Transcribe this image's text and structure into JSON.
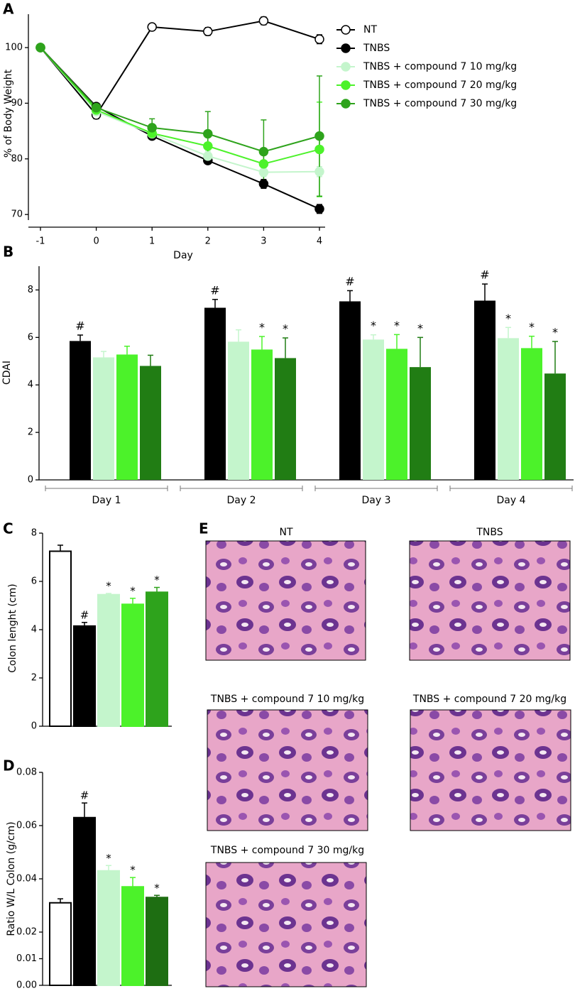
{
  "chart_data": [
    {
      "type": "line",
      "panel": "A",
      "x_label": "Day",
      "y_label": "% of Body Weight",
      "x": [
        -1,
        0,
        1,
        2,
        3,
        4
      ],
      "xlim": [
        -1,
        4
      ],
      "xticks": [
        -1,
        0,
        1,
        2,
        3,
        4
      ],
      "ylim": [
        69,
        106
      ],
      "yticks": [
        70,
        80,
        90,
        100
      ],
      "series": [
        {
          "name": "NT",
          "color": "#ffffff",
          "values": [
            100,
            87.9,
            103.7,
            102.9,
            104.8,
            101.5
          ],
          "errors": [
            0.3,
            0.7,
            0.4,
            0.7,
            0.7,
            0.8
          ]
        },
        {
          "name": "TNBS",
          "color": "#000000",
          "values": [
            100,
            89.4,
            84.1,
            79.7,
            75.5,
            71.0
          ],
          "errors": [
            0.3,
            0.5,
            0.5,
            0.6,
            0.8,
            0.8
          ]
        },
        {
          "name": "TNBS + compound 7 10 mg/kg",
          "color": "#c4f5cc",
          "values": [
            100,
            88.5,
            84.5,
            80.5,
            77.6,
            77.7
          ],
          "errors": [
            0.3,
            0.6,
            0.8,
            0.9,
            0.8,
            0.9
          ]
        },
        {
          "name": "TNBS + compound 7 20 mg/kg",
          "color": "#4cf22a",
          "values": [
            100,
            88.8,
            84.6,
            82.3,
            79.1,
            81.7
          ],
          "errors": [
            0.3,
            0.6,
            1.0,
            1.7,
            2.0,
            8.5
          ]
        },
        {
          "name": "TNBS + compound 7 30 mg/kg",
          "color": "#2ea31c",
          "values": [
            100,
            89.2,
            85.6,
            84.5,
            81.3,
            84.1
          ],
          "errors": [
            0.3,
            0.6,
            1.6,
            4.0,
            5.7,
            10.8
          ]
        }
      ]
    },
    {
      "type": "grouped-bar",
      "panel": "B",
      "y_label": "CDAI",
      "categories": [
        "Day 1",
        "Day 2",
        "Day 3",
        "Day 4"
      ],
      "ylim": [
        0,
        9
      ],
      "yticks": [
        0,
        2,
        4,
        6,
        8
      ],
      "series": [
        {
          "name": "TNBS",
          "color": "#000000",
          "values": [
            5.85,
            7.25,
            7.52,
            7.55
          ],
          "errors": [
            0.25,
            0.35,
            0.45,
            0.7
          ],
          "annotations": [
            "#",
            "#",
            "#",
            "#"
          ]
        },
        {
          "name": "TNBS + compound 7 10 mg/kg",
          "color": "#c4f5cc",
          "values": [
            5.16,
            5.82,
            5.91,
            5.97
          ],
          "errors": [
            0.25,
            0.5,
            0.2,
            0.45
          ],
          "annotations": [
            null,
            null,
            "*",
            "*"
          ]
        },
        {
          "name": "TNBS + compound 7 20 mg/kg",
          "color": "#4cf22a",
          "values": [
            5.28,
            5.49,
            5.52,
            5.55
          ],
          "errors": [
            0.35,
            0.55,
            0.6,
            0.5
          ],
          "annotations": [
            null,
            "*",
            "*",
            "*"
          ]
        },
        {
          "name": "TNBS + compound 7 30 mg/kg",
          "color": "#217d14",
          "values": [
            4.8,
            5.13,
            4.75,
            4.48
          ],
          "errors": [
            0.45,
            0.85,
            1.25,
            1.35
          ],
          "annotations": [
            null,
            "*",
            "*",
            "*"
          ]
        }
      ]
    },
    {
      "type": "bar",
      "panel": "C",
      "y_label": "Colon lenght (cm)",
      "ylim": [
        0,
        8
      ],
      "yticks": [
        0,
        2,
        4,
        6,
        8
      ],
      "values": [
        7.25,
        4.15,
        5.45,
        5.05,
        5.55
      ],
      "errors": [
        0.25,
        0.15,
        0.05,
        0.25,
        0.2
      ],
      "colors": [
        "#ffffff",
        "#000000",
        "#c4f5cc",
        "#4cf22a",
        "#2ea31c"
      ],
      "annotations": [
        null,
        "#",
        "*",
        "*",
        "*"
      ]
    },
    {
      "type": "bar",
      "panel": "D",
      "y_label": "Ratio W/L Colon (g/cm)",
      "ylim": [
        0,
        0.08
      ],
      "yticks": [
        {
          "value": 0,
          "label": "0.00"
        },
        0.01,
        0.02,
        0.04,
        0.06,
        {
          "value": 0.08,
          "label": "0.08"
        }
      ],
      "values": [
        0.031,
        0.063,
        0.043,
        0.037,
        0.033
      ],
      "errors": [
        0.0015,
        0.0055,
        0.002,
        0.0035,
        0.0008
      ],
      "colors": [
        "#ffffff",
        "#000000",
        "#c4f5cc",
        "#4cf22a",
        "#1e6e12"
      ],
      "annotations": [
        null,
        "#",
        "*",
        "*",
        "*"
      ]
    }
  ],
  "panel_e": {
    "label": "E",
    "images": [
      {
        "title": "NT"
      },
      {
        "title": "TNBS"
      },
      {
        "title": "TNBS + compound 7 10 mg/kg"
      },
      {
        "title": "TNBS + compound 7 20 mg/kg"
      },
      {
        "title": "TNBS + compound 7 30 mg/kg"
      }
    ]
  }
}
